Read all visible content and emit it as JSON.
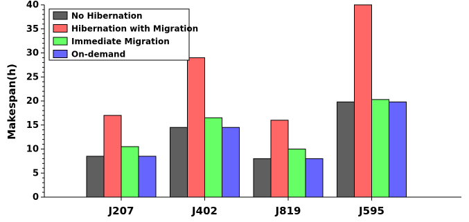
{
  "chart_data": {
    "type": "bar",
    "categories": [
      "J207",
      "J402",
      "J819",
      "J595"
    ],
    "series": [
      {
        "name": "No Hibernation",
        "color": "#5f5f5f",
        "values": [
          8.5,
          14.5,
          8,
          19.8
        ]
      },
      {
        "name": "Hibernation with Migration",
        "color": "#ff6666",
        "values": [
          17,
          29,
          16,
          40
        ]
      },
      {
        "name": "Immediate Migration",
        "color": "#66ff66",
        "values": [
          10.5,
          16.5,
          10,
          20.3
        ]
      },
      {
        "name": "On-demand",
        "color": "#6666ff",
        "values": [
          8.5,
          14.5,
          8,
          19.8
        ]
      }
    ],
    "ylabel": "Makespan(h)",
    "xlabel": "",
    "ylim": [
      0,
      40
    ],
    "yticks": [
      0,
      5,
      10,
      15,
      20,
      25,
      30,
      35,
      40
    ],
    "grid": false,
    "legend_position": "top-left"
  }
}
